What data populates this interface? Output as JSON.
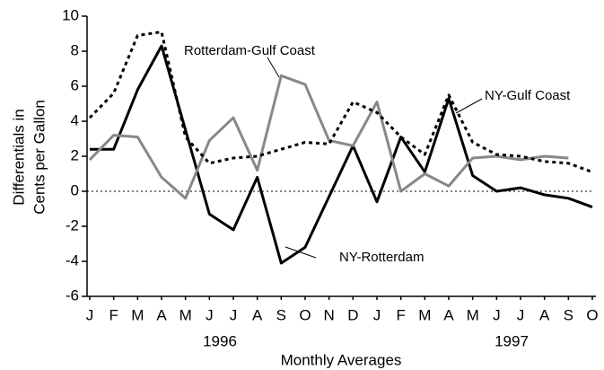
{
  "chart_data": {
    "type": "line",
    "y_label": [
      "Differentials in",
      "Cents per Gallon"
    ],
    "x_label": "Monthly Averages",
    "year_labels": [
      "1996",
      "1997"
    ],
    "categories": [
      "J",
      "F",
      "M",
      "A",
      "M",
      "J",
      "J",
      "A",
      "S",
      "O",
      "N",
      "D",
      "J",
      "F",
      "M",
      "A",
      "M",
      "J",
      "J",
      "A",
      "S",
      "O"
    ],
    "ylim": [
      -6,
      10
    ],
    "yticks": [
      -6,
      -4,
      -2,
      0,
      2,
      4,
      6,
      8,
      10
    ],
    "zero_line": true,
    "series": [
      {
        "name": "NY-Rotterdam",
        "color": "#000000",
        "dash": "none",
        "values": [
          2.4,
          2.4,
          5.8,
          8.3,
          3.5,
          -1.3,
          -2.2,
          0.8,
          -4.1,
          -3.2,
          -0.3,
          2.6,
          -0.6,
          3.1,
          1.1,
          5.3,
          0.9,
          0.0,
          0.2,
          -0.2,
          -0.4,
          -0.9
        ]
      },
      {
        "name": "Rotterdam-Gulf Coast",
        "color": "#888888",
        "dash": "none",
        "values": [
          1.8,
          3.2,
          3.1,
          0.8,
          -0.4,
          2.9,
          4.2,
          1.2,
          6.6,
          6.1,
          2.9,
          2.6,
          5.1,
          0.0,
          1.0,
          0.3,
          1.9,
          2.0,
          1.8,
          2.0,
          1.9,
          null
        ]
      },
      {
        "name": "NY-Gulf Coast",
        "color": "#000000",
        "dash": "4 4",
        "values": [
          4.2,
          5.6,
          8.9,
          9.1,
          3.1,
          1.6,
          1.9,
          2.0,
          2.4,
          2.8,
          2.7,
          5.1,
          4.5,
          3.1,
          2.1,
          5.5,
          2.8,
          2.1,
          2.0,
          1.7,
          1.6,
          1.1
        ]
      }
    ]
  }
}
